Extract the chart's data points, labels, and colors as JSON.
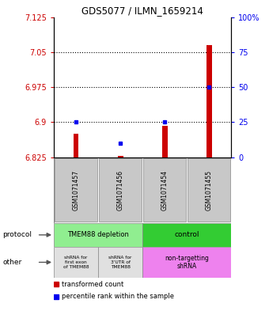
{
  "title": "GDS5077 / ILMN_1659214",
  "samples": [
    "GSM1071457",
    "GSM1071456",
    "GSM1071454",
    "GSM1071455"
  ],
  "red_values": [
    6.875,
    6.828,
    6.893,
    7.065
  ],
  "blue_values": [
    6.9,
    6.855,
    6.9,
    6.975
  ],
  "ylim_left": [
    6.825,
    7.125
  ],
  "ylim_right": [
    0,
    100
  ],
  "yticks_left": [
    6.825,
    6.9,
    6.975,
    7.05,
    7.125
  ],
  "ytick_labels_left": [
    "6.825",
    "6.9",
    "6.975",
    "7.05",
    "7.125"
  ],
  "yticks_right": [
    0,
    25,
    50,
    75,
    100
  ],
  "ytick_labels_right": [
    "0",
    "25",
    "50",
    "75",
    "100%"
  ],
  "hlines": [
    6.9,
    6.975,
    7.05
  ],
  "bar_bottom": 6.825,
  "bar_width": 0.12,
  "red_bar_color": "#CC0000",
  "blue_dot_color": "#0000EE",
  "left_label_color": "#CC0000",
  "right_label_color": "#0000EE",
  "protocol_color_tmem": "#90EE90",
  "protocol_color_ctrl": "#33CC33",
  "other_color_shrna": "#E0E0E0",
  "other_color_nontarget": "#EE82EE",
  "sample_box_color": "#C8C8C8",
  "protocol_label": "protocol",
  "other_label": "other",
  "legend_red_text": "transformed count",
  "legend_blue_text": "percentile rank within the sample"
}
